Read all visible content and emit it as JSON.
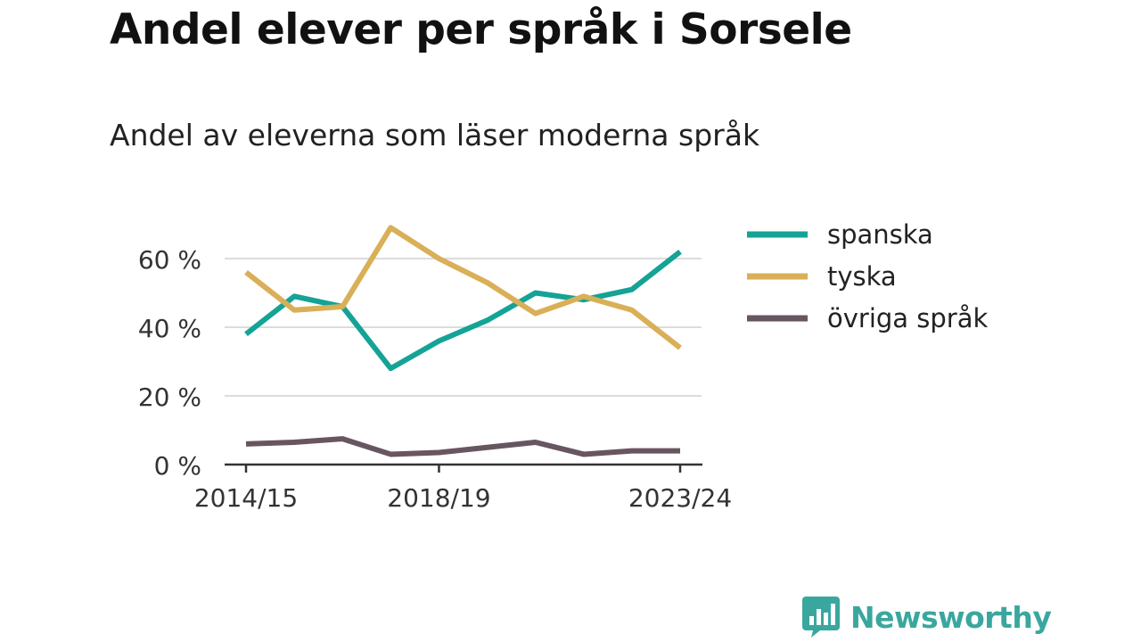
{
  "title": "Andel elever per språk i Sorsele",
  "subtitle": "Andel av eleverna som läser moderna språk",
  "brand": {
    "name": "Newsworthy",
    "icon": "bar-chart-speech-bubble-icon",
    "color": "#3aa79f"
  },
  "chart_data": {
    "type": "line",
    "x": [
      "2014/15",
      "2015/16",
      "2016/17",
      "2017/18",
      "2018/19",
      "2019/20",
      "2020/21",
      "2021/22",
      "2022/23",
      "2023/24"
    ],
    "x_tick_labels": [
      "2014/15",
      "2018/19",
      "2023/24"
    ],
    "y_ticks": [
      0,
      20,
      40,
      60
    ],
    "y_tick_labels": [
      "0 %",
      "20 %",
      "40 %",
      "60 %"
    ],
    "ylim": [
      0,
      70
    ],
    "grid": true,
    "legend_position": "right",
    "series": [
      {
        "name": "spanska",
        "color": "#14a396",
        "values": [
          38,
          49,
          46,
          28,
          36,
          42,
          50,
          48,
          51,
          62
        ]
      },
      {
        "name": "tyska",
        "color": "#d9af57",
        "values": [
          56,
          45,
          46,
          69,
          60,
          53,
          44,
          49,
          45,
          34
        ]
      },
      {
        "name": "övriga språk",
        "color": "#675660",
        "values": [
          6,
          6.5,
          7.5,
          3,
          3.5,
          5,
          6.5,
          3,
          4,
          4
        ]
      }
    ]
  }
}
